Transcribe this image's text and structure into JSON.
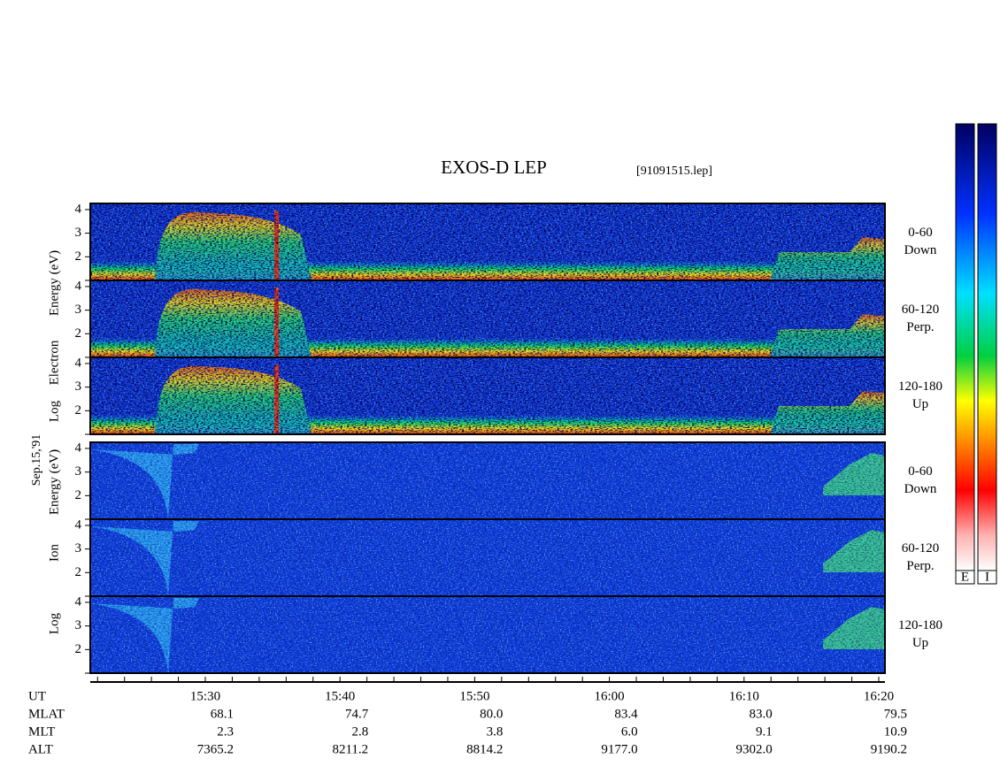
{
  "title": "EXOS-D LEP",
  "file": "[91091515.lep]",
  "date": "Sep.15,'91",
  "groups": [
    {
      "label_words": [
        "Log",
        "Electron",
        "Energy (eV)"
      ],
      "ylim": [
        1,
        4.26
      ],
      "yticks": [
        2,
        3,
        4
      ],
      "panels": [
        {
          "range": "0-60",
          "direction": "Down"
        },
        {
          "range": "60-120",
          "direction": "Perp."
        },
        {
          "range": "120-180",
          "direction": "Up"
        }
      ]
    },
    {
      "label_words": [
        "Log",
        "Ion",
        "Energy (eV)"
      ],
      "ylim": [
        1,
        4.26
      ],
      "yticks": [
        2,
        3,
        4
      ],
      "panels": [
        {
          "range": "0-60",
          "direction": "Down"
        },
        {
          "range": "60-120",
          "direction": "Perp."
        },
        {
          "range": "120-180",
          "direction": "Up"
        }
      ]
    }
  ],
  "ephemeris": [
    {
      "name": "UT",
      "values": [
        "15:30",
        "15:40",
        "15:50",
        "16:00",
        "16:10",
        "16:20"
      ]
    },
    {
      "name": "MLAT",
      "values": [
        "68.1",
        "74.7",
        "80.0",
        "83.4",
        "83.0",
        "79.5"
      ]
    },
    {
      "name": "MLT",
      "values": [
        "2.3",
        "2.8",
        "3.8",
        "6.0",
        "9.1",
        "10.9"
      ]
    },
    {
      "name": "ALT",
      "values": [
        "7365.2",
        "8211.2",
        "8814.2",
        "9177.0",
        "9302.0",
        "9190.2"
      ]
    }
  ],
  "colorbar_labels": [
    "E",
    "I"
  ]
}
